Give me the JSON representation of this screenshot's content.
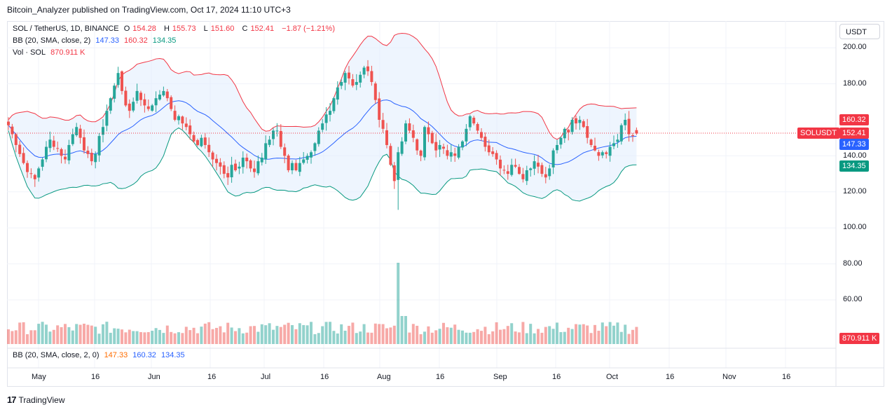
{
  "header": {
    "text": "Bitcoin_Analyzer published on TradingView.com, Oct 17, 2024 11:10 UTC+3"
  },
  "legend": {
    "symbol": "SOL / TetherUS, 1D, BINANCE",
    "open_label": "O",
    "open": "154.28",
    "high_label": "H",
    "high": "155.73",
    "low_label": "L",
    "low": "151.60",
    "close_label": "C",
    "close": "152.41",
    "change": "−1.87 (−1.21%)",
    "bb_label": "BB (20, SMA, close, 2)",
    "bb_basis": "147.33",
    "bb_upper": "160.32",
    "bb_lower": "134.35",
    "vol_label": "Vol · SOL",
    "vol_value": "870.911 K"
  },
  "bottom_legend": {
    "label": "BB (20, SMA, close, 2, 0)",
    "basis": "147.33",
    "upper": "160.32",
    "lower": "134.35"
  },
  "currency_button": "USDT",
  "price_axis": [
    "200.00",
    "180.00",
    "140.00",
    "120.00",
    "100.00",
    "80.00",
    "60.00"
  ],
  "price_tags": {
    "upper": "160.32",
    "symbol": "SOLUSDT",
    "last": "152.41",
    "basis": "147.33",
    "lower": "134.35",
    "volume": "870.911 K"
  },
  "time_axis": [
    "May",
    "16",
    "Jun",
    "16",
    "Jul",
    "16",
    "Aug",
    "16",
    "Sep",
    "16",
    "Oct",
    "16",
    "Nov",
    "16"
  ],
  "footer": {
    "brand": "TradingView"
  },
  "colors": {
    "up": "#26a69a",
    "down": "#ef5350",
    "bb_upper": "#f23645",
    "bb_basis": "#2962ff",
    "bb_lower": "#089981",
    "bb_fill": "#e3effd"
  },
  "chart_data": {
    "type": "candlestick",
    "symbol": "SOL / TetherUS",
    "interval": "1D",
    "price_axis_ticks": [
      200,
      180,
      140,
      120,
      100,
      80,
      60
    ],
    "ylim": [
      45,
      210
    ],
    "x_start": "2024-04-23",
    "x_ticks": [
      "May",
      "16",
      "Jun",
      "16",
      "Jul",
      "16",
      "Aug",
      "16",
      "Sep",
      "16",
      "Oct",
      "16",
      "Nov",
      "16"
    ],
    "closes": [
      157,
      152,
      146,
      141,
      136,
      131,
      130,
      127,
      133,
      138,
      145,
      149,
      145,
      144,
      140,
      138,
      146,
      152,
      156,
      150,
      143,
      141,
      137,
      141,
      151,
      156,
      165,
      172,
      179,
      186,
      176,
      168,
      165,
      170,
      176,
      171,
      168,
      166,
      168,
      172,
      174,
      176,
      172,
      166,
      160,
      162,
      158,
      156,
      152,
      148,
      146,
      150,
      146,
      142,
      138,
      136,
      134,
      130,
      128,
      135,
      132,
      134,
      139,
      137,
      133,
      131,
      137,
      139,
      147,
      149,
      154,
      154,
      145,
      140,
      132,
      136,
      132,
      136,
      138,
      140,
      142,
      147,
      154,
      158,
      163,
      165,
      172,
      178,
      181,
      186,
      183,
      179,
      181,
      185,
      189,
      187,
      181,
      171,
      160,
      155,
      146,
      135,
      126,
      142,
      148,
      158,
      154,
      150,
      143,
      140,
      156,
      152,
      147,
      143,
      146,
      144,
      140,
      142,
      140,
      145,
      148,
      155,
      162,
      158,
      154,
      150,
      145,
      142,
      141,
      138,
      133,
      132,
      130,
      135,
      134,
      130,
      127,
      132,
      133,
      137,
      134,
      130,
      128,
      133,
      143,
      146,
      150,
      155,
      153,
      160,
      158,
      160,
      156,
      150,
      146,
      143,
      140,
      142,
      141,
      145,
      147,
      149,
      157,
      160,
      152,
      151,
      152
    ],
    "bb_upper_sample": 160.32,
    "bb_basis_sample": 147.33,
    "bb_lower_sample": 134.35,
    "last_price": 152.41,
    "volume_last": "870.911 K",
    "volume_spike_day": "2024-08-05"
  }
}
